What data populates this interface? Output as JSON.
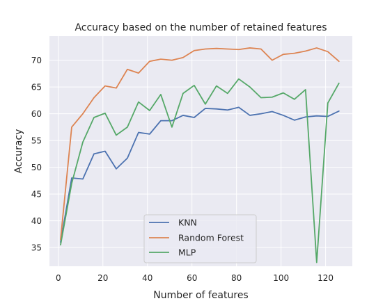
{
  "chart_data": {
    "type": "line",
    "title": "Accuracy based on the number of retained features",
    "xlabel": "Number of features",
    "ylabel": "Accuracy",
    "xlim": [
      -4,
      132
    ],
    "ylim": [
      31.5,
      74.5
    ],
    "xticks": [
      "0",
      "20",
      "40",
      "60",
      "80",
      "100",
      "120"
    ],
    "yticks": [
      "35",
      "40",
      "45",
      "50",
      "55",
      "60",
      "65",
      "70"
    ],
    "grid": true,
    "legend_position": "lower-center",
    "x": [
      1,
      6,
      11,
      16,
      21,
      26,
      31,
      36,
      41,
      46,
      51,
      56,
      61,
      66,
      71,
      76,
      81,
      86,
      91,
      96,
      101,
      106,
      111,
      116,
      121,
      126
    ],
    "series": [
      {
        "name": "KNN",
        "color": "#4c72b0",
        "values": [
          36.0,
          48.0,
          47.8,
          52.5,
          53.0,
          49.7,
          51.7,
          56.5,
          56.2,
          58.7,
          58.7,
          59.7,
          59.3,
          61.0,
          60.9,
          60.7,
          61.2,
          59.7,
          60.0,
          60.4,
          59.7,
          58.8,
          59.4,
          59.6,
          59.5,
          60.5
        ]
      },
      {
        "name": "Random Forest",
        "color": "#dd8452",
        "values": [
          36.5,
          57.5,
          60.0,
          63.0,
          65.2,
          64.8,
          68.3,
          67.6,
          69.8,
          70.2,
          70.0,
          70.5,
          71.8,
          72.1,
          72.2,
          72.1,
          72.0,
          72.3,
          72.1,
          70.0,
          71.1,
          71.3,
          71.7,
          72.3,
          71.6,
          69.8
        ]
      },
      {
        "name": "MLP",
        "color": "#55a868",
        "values": [
          35.5,
          47.0,
          54.7,
          59.3,
          60.1,
          56.0,
          57.5,
          62.2,
          60.6,
          63.6,
          57.5,
          63.8,
          65.3,
          61.8,
          65.2,
          63.8,
          66.5,
          65.0,
          63.0,
          63.1,
          63.9,
          62.7,
          64.5,
          32.2,
          62.0,
          65.7
        ]
      }
    ]
  }
}
